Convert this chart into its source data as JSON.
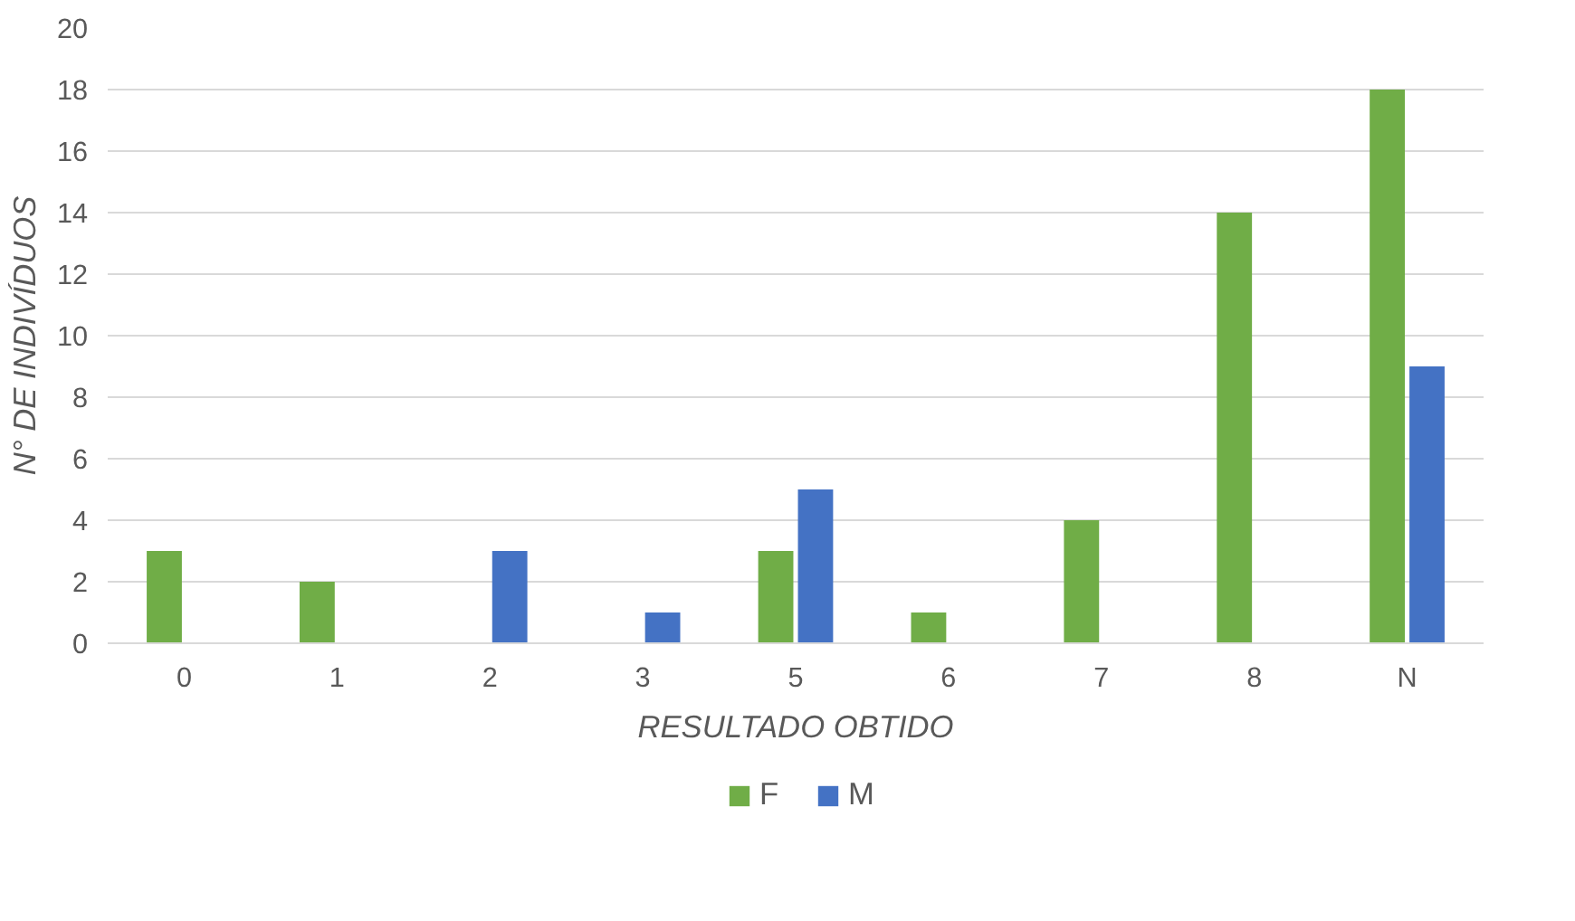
{
  "chart_data": {
    "type": "bar",
    "xlabel": "RESULTADO OBTIDO",
    "ylabel": "N° DE INDIVÍDUOS",
    "categories": [
      "0",
      "1",
      "2",
      "3",
      "5",
      "6",
      "7",
      "8",
      "N"
    ],
    "series": [
      {
        "name": "F",
        "color": "#70ad47",
        "values": [
          3,
          2,
          0,
          0,
          3,
          1,
          4,
          14,
          18
        ]
      },
      {
        "name": "M",
        "color": "#4472c4",
        "values": [
          0,
          0,
          3,
          1,
          5,
          0,
          0,
          0,
          9
        ]
      }
    ],
    "ylim": [
      0,
      20
    ],
    "yticks": [
      0,
      2,
      4,
      6,
      8,
      10,
      12,
      14,
      16,
      18,
      20
    ],
    "grid": "y",
    "legend": "bottom"
  }
}
